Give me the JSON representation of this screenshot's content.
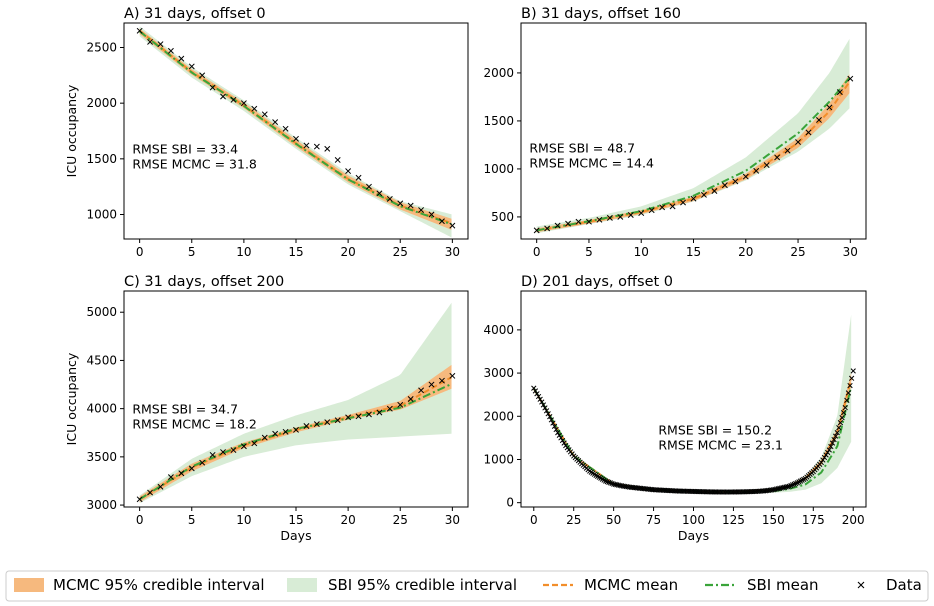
{
  "colors": {
    "mcmc_band": "#f6b97e",
    "sbi_band": "#d8ecd6",
    "mcmc_mean": "#f28e2b",
    "sbi_mean": "#3aa43a",
    "data": "#000000"
  },
  "legend": {
    "mcmc_interval": "MCMC 95% credible interval",
    "sbi_interval": "SBI 95% credible interval",
    "mcmc_mean": "MCMC mean",
    "sbi_mean": "SBI mean",
    "data": "Data"
  },
  "chart_data": [
    {
      "type": "line",
      "title": "A)  31 days, offset 0",
      "xlabel": "",
      "ylabel": "ICU occupancy",
      "xlim": [
        -1.5,
        31.5
      ],
      "ylim": [
        780,
        2720
      ],
      "xticks": [
        0,
        5,
        10,
        15,
        20,
        25,
        30
      ],
      "yticks": [
        1000,
        1500,
        2000,
        2500
      ],
      "rmse_sbi": "RMSE SBI = 33.4",
      "rmse_mcmc": "RMSE MCMC = 31.8",
      "annotation_pos": [
        -0.7,
        1550
      ],
      "data_x": [
        0,
        1,
        2,
        3,
        4,
        5,
        6,
        7,
        8,
        9,
        10,
        11,
        12,
        13,
        14,
        15,
        16,
        17,
        18,
        19,
        20,
        21,
        22,
        23,
        24,
        25,
        26,
        27,
        28,
        29,
        30
      ],
      "data_y": [
        2650,
        2550,
        2530,
        2470,
        2400,
        2330,
        2250,
        2140,
        2060,
        2030,
        2000,
        1950,
        1900,
        1830,
        1770,
        1680,
        1620,
        1610,
        1590,
        1490,
        1390,
        1330,
        1250,
        1190,
        1140,
        1100,
        1080,
        1040,
        1000,
        940,
        900
      ],
      "mcmc_mean": [
        [
          0,
          2650
        ],
        [
          5,
          2280
        ],
        [
          10,
          1980
        ],
        [
          15,
          1640
        ],
        [
          20,
          1320
        ],
        [
          25,
          1080
        ],
        [
          30,
          920
        ]
      ],
      "mcmc_lower": [
        [
          0,
          2620
        ],
        [
          5,
          2255
        ],
        [
          10,
          1955
        ],
        [
          15,
          1610
        ],
        [
          20,
          1290
        ],
        [
          25,
          1045
        ],
        [
          30,
          860
        ]
      ],
      "mcmc_upper": [
        [
          0,
          2670
        ],
        [
          5,
          2305
        ],
        [
          10,
          2005
        ],
        [
          15,
          1670
        ],
        [
          20,
          1350
        ],
        [
          25,
          1110
        ],
        [
          30,
          960
        ]
      ],
      "sbi_mean": [
        [
          0,
          2645
        ],
        [
          5,
          2275
        ],
        [
          10,
          1975
        ],
        [
          15,
          1635
        ],
        [
          20,
          1315
        ],
        [
          25,
          1075
        ],
        [
          30,
          910
        ]
      ],
      "sbi_lower": [
        [
          0,
          2600
        ],
        [
          5,
          2230
        ],
        [
          10,
          1930
        ],
        [
          15,
          1590
        ],
        [
          20,
          1270
        ],
        [
          25,
          1030
        ],
        [
          30,
          790
        ]
      ],
      "sbi_upper": [
        [
          0,
          2690
        ],
        [
          5,
          2325
        ],
        [
          10,
          2025
        ],
        [
          15,
          1690
        ],
        [
          20,
          1370
        ],
        [
          25,
          1120
        ],
        [
          30,
          1000
        ]
      ]
    },
    {
      "type": "line",
      "title": "B)  31 days, offset 160",
      "xlabel": "",
      "ylabel": "",
      "xlim": [
        -1.5,
        31.5
      ],
      "ylim": [
        270,
        2520
      ],
      "xticks": [
        0,
        5,
        10,
        15,
        20,
        25,
        30
      ],
      "yticks": [
        500,
        1000,
        1500,
        2000
      ],
      "rmse_sbi": "RMSE SBI = 48.7",
      "rmse_mcmc": "RMSE MCMC = 14.4",
      "annotation_pos": [
        -0.7,
        1170
      ],
      "data_x": [
        0,
        1,
        2,
        3,
        4,
        5,
        6,
        7,
        8,
        9,
        10,
        11,
        12,
        13,
        14,
        15,
        16,
        17,
        18,
        19,
        20,
        21,
        22,
        23,
        24,
        25,
        26,
        27,
        28,
        29,
        30
      ],
      "data_y": [
        360,
        380,
        410,
        430,
        450,
        450,
        470,
        490,
        500,
        520,
        540,
        570,
        600,
        610,
        650,
        690,
        730,
        770,
        830,
        870,
        920,
        980,
        1040,
        1120,
        1190,
        1280,
        1380,
        1510,
        1640,
        1800,
        1940
      ],
      "mcmc_mean": [
        [
          0,
          360
        ],
        [
          5,
          450
        ],
        [
          10,
          550
        ],
        [
          15,
          690
        ],
        [
          20,
          920
        ],
        [
          25,
          1270
        ],
        [
          28,
          1600
        ],
        [
          30,
          1920
        ]
      ],
      "mcmc_lower": [
        [
          0,
          340
        ],
        [
          5,
          430
        ],
        [
          10,
          530
        ],
        [
          15,
          665
        ],
        [
          20,
          890
        ],
        [
          25,
          1220
        ],
        [
          28,
          1530
        ],
        [
          30,
          1800
        ]
      ],
      "mcmc_upper": [
        [
          0,
          380
        ],
        [
          5,
          470
        ],
        [
          10,
          570
        ],
        [
          15,
          710
        ],
        [
          20,
          950
        ],
        [
          25,
          1320
        ],
        [
          28,
          1680
        ],
        [
          30,
          2000
        ]
      ],
      "sbi_mean": [
        [
          0,
          360
        ],
        [
          5,
          455
        ],
        [
          10,
          560
        ],
        [
          15,
          720
        ],
        [
          20,
          980
        ],
        [
          25,
          1370
        ],
        [
          28,
          1700
        ],
        [
          30,
          1960
        ]
      ],
      "sbi_lower": [
        [
          0,
          330
        ],
        [
          5,
          425
        ],
        [
          10,
          520
        ],
        [
          15,
          660
        ],
        [
          20,
          880
        ],
        [
          25,
          1180
        ],
        [
          28,
          1420
        ],
        [
          30,
          1640
        ]
      ],
      "sbi_upper": [
        [
          0,
          400
        ],
        [
          5,
          490
        ],
        [
          10,
          610
        ],
        [
          15,
          800
        ],
        [
          20,
          1120
        ],
        [
          25,
          1580
        ],
        [
          28,
          2000
        ],
        [
          30,
          2370
        ]
      ]
    },
    {
      "type": "line",
      "title": "C)  31 days, offset 200",
      "xlabel": "Days",
      "ylabel": "ICU occupancy",
      "xlim": [
        -1.5,
        31.5
      ],
      "ylim": [
        2980,
        5220
      ],
      "xticks": [
        0,
        5,
        10,
        15,
        20,
        25,
        30
      ],
      "yticks": [
        3000,
        3500,
        4000,
        4500,
        5000
      ],
      "rmse_sbi": "RMSE SBI = 34.7",
      "rmse_mcmc": "RMSE MCMC = 18.2",
      "annotation_pos": [
        -0.7,
        3950
      ],
      "data_x": [
        0,
        1,
        2,
        3,
        4,
        5,
        6,
        7,
        8,
        9,
        10,
        11,
        12,
        13,
        14,
        15,
        16,
        17,
        18,
        19,
        20,
        21,
        22,
        23,
        24,
        25,
        26,
        27,
        28,
        29,
        30
      ],
      "data_y": [
        3060,
        3130,
        3190,
        3290,
        3330,
        3380,
        3440,
        3520,
        3550,
        3570,
        3610,
        3640,
        3700,
        3740,
        3760,
        3780,
        3820,
        3840,
        3860,
        3880,
        3910,
        3920,
        3940,
        3960,
        4000,
        4040,
        4100,
        4190,
        4250,
        4290,
        4340
      ],
      "mcmc_mean": [
        [
          0,
          3060
        ],
        [
          5,
          3390
        ],
        [
          10,
          3620
        ],
        [
          15,
          3780
        ],
        [
          20,
          3910
        ],
        [
          25,
          4030
        ],
        [
          30,
          4330
        ]
      ],
      "mcmc_lower": [
        [
          0,
          3030
        ],
        [
          5,
          3350
        ],
        [
          10,
          3590
        ],
        [
          15,
          3755
        ],
        [
          20,
          3885
        ],
        [
          25,
          3990
        ],
        [
          30,
          4210
        ]
      ],
      "mcmc_upper": [
        [
          0,
          3090
        ],
        [
          5,
          3430
        ],
        [
          10,
          3650
        ],
        [
          15,
          3805
        ],
        [
          20,
          3935
        ],
        [
          25,
          4080
        ],
        [
          30,
          4460
        ]
      ],
      "sbi_mean": [
        [
          0,
          3060
        ],
        [
          5,
          3400
        ],
        [
          10,
          3630
        ],
        [
          15,
          3790
        ],
        [
          20,
          3900
        ],
        [
          25,
          4010
        ],
        [
          30,
          4260
        ]
      ],
      "sbi_lower": [
        [
          0,
          3020
        ],
        [
          5,
          3300
        ],
        [
          10,
          3500
        ],
        [
          15,
          3620
        ],
        [
          20,
          3680
        ],
        [
          25,
          3710
        ],
        [
          30,
          3740
        ]
      ],
      "sbi_upper": [
        [
          0,
          3100
        ],
        [
          5,
          3480
        ],
        [
          10,
          3740
        ],
        [
          15,
          3930
        ],
        [
          20,
          4090
        ],
        [
          25,
          4350
        ],
        [
          30,
          5110
        ]
      ]
    },
    {
      "type": "line",
      "title": "D)  201 days, offset 0",
      "xlabel": "Days",
      "ylabel": "",
      "xlim": [
        -8,
        208
      ],
      "ylim": [
        -100,
        4900
      ],
      "xticks": [
        0,
        25,
        50,
        75,
        100,
        125,
        150,
        175,
        200
      ],
      "yticks": [
        0,
        1000,
        2000,
        3000,
        4000
      ],
      "rmse_sbi": "RMSE SBI = 150.2",
      "rmse_mcmc": "RMSE MCMC = 23.1",
      "annotation_pos": [
        78,
        1580
      ],
      "data_series": [
        [
          0,
          2650
        ],
        [
          5,
          2330
        ],
        [
          10,
          1990
        ],
        [
          15,
          1620
        ],
        [
          20,
          1320
        ],
        [
          25,
          1080
        ],
        [
          30,
          900
        ],
        [
          35,
          730
        ],
        [
          40,
          610
        ],
        [
          45,
          500
        ],
        [
          50,
          430
        ],
        [
          55,
          390
        ],
        [
          60,
          360
        ],
        [
          65,
          340
        ],
        [
          70,
          320
        ],
        [
          75,
          300
        ],
        [
          80,
          290
        ],
        [
          85,
          280
        ],
        [
          90,
          270
        ],
        [
          95,
          265
        ],
        [
          100,
          260
        ],
        [
          105,
          255
        ],
        [
          110,
          250
        ],
        [
          115,
          248
        ],
        [
          120,
          247
        ],
        [
          125,
          248
        ],
        [
          130,
          250
        ],
        [
          135,
          255
        ],
        [
          140,
          262
        ],
        [
          145,
          275
        ],
        [
          150,
          300
        ],
        [
          155,
          340
        ],
        [
          160,
          380
        ],
        [
          165,
          460
        ],
        [
          170,
          560
        ],
        [
          175,
          720
        ],
        [
          180,
          930
        ],
        [
          185,
          1220
        ],
        [
          190,
          1620
        ],
        [
          195,
          2200
        ],
        [
          200,
          3050
        ]
      ],
      "mcmc_mean": [
        [
          0,
          2640
        ],
        [
          25,
          1080
        ],
        [
          50,
          430
        ],
        [
          75,
          300
        ],
        [
          100,
          260
        ],
        [
          125,
          248
        ],
        [
          150,
          300
        ],
        [
          160,
          380
        ],
        [
          170,
          560
        ],
        [
          180,
          930
        ],
        [
          190,
          1620
        ],
        [
          200,
          3040
        ]
      ],
      "mcmc_lower": [
        [
          0,
          2600
        ],
        [
          25,
          1050
        ],
        [
          50,
          400
        ],
        [
          75,
          280
        ],
        [
          100,
          240
        ],
        [
          125,
          230
        ],
        [
          150,
          275
        ],
        [
          160,
          350
        ],
        [
          170,
          520
        ],
        [
          180,
          870
        ],
        [
          190,
          1520
        ],
        [
          200,
          2870
        ]
      ],
      "mcmc_upper": [
        [
          0,
          2680
        ],
        [
          25,
          1110
        ],
        [
          50,
          460
        ],
        [
          75,
          320
        ],
        [
          100,
          280
        ],
        [
          125,
          268
        ],
        [
          150,
          325
        ],
        [
          160,
          410
        ],
        [
          170,
          600
        ],
        [
          180,
          990
        ],
        [
          190,
          1720
        ],
        [
          200,
          3200
        ]
      ],
      "sbi_mean": [
        [
          0,
          2650
        ],
        [
          25,
          1080
        ],
        [
          50,
          430
        ],
        [
          75,
          300
        ],
        [
          100,
          260
        ],
        [
          125,
          245
        ],
        [
          150,
          270
        ],
        [
          160,
          320
        ],
        [
          170,
          420
        ],
        [
          180,
          700
        ],
        [
          190,
          1300
        ],
        [
          200,
          2900
        ]
      ],
      "sbi_lower": [
        [
          0,
          2600
        ],
        [
          25,
          1040
        ],
        [
          50,
          400
        ],
        [
          75,
          270
        ],
        [
          100,
          230
        ],
        [
          125,
          215
        ],
        [
          150,
          230
        ],
        [
          160,
          250
        ],
        [
          170,
          300
        ],
        [
          180,
          450
        ],
        [
          190,
          800
        ],
        [
          200,
          1500
        ]
      ],
      "sbi_upper": [
        [
          0,
          2700
        ],
        [
          25,
          1120
        ],
        [
          50,
          460
        ],
        [
          75,
          330
        ],
        [
          100,
          290
        ],
        [
          125,
          275
        ],
        [
          150,
          330
        ],
        [
          160,
          420
        ],
        [
          170,
          620
        ],
        [
          180,
          1050
        ],
        [
          190,
          2000
        ],
        [
          200,
          4700
        ]
      ]
    }
  ]
}
